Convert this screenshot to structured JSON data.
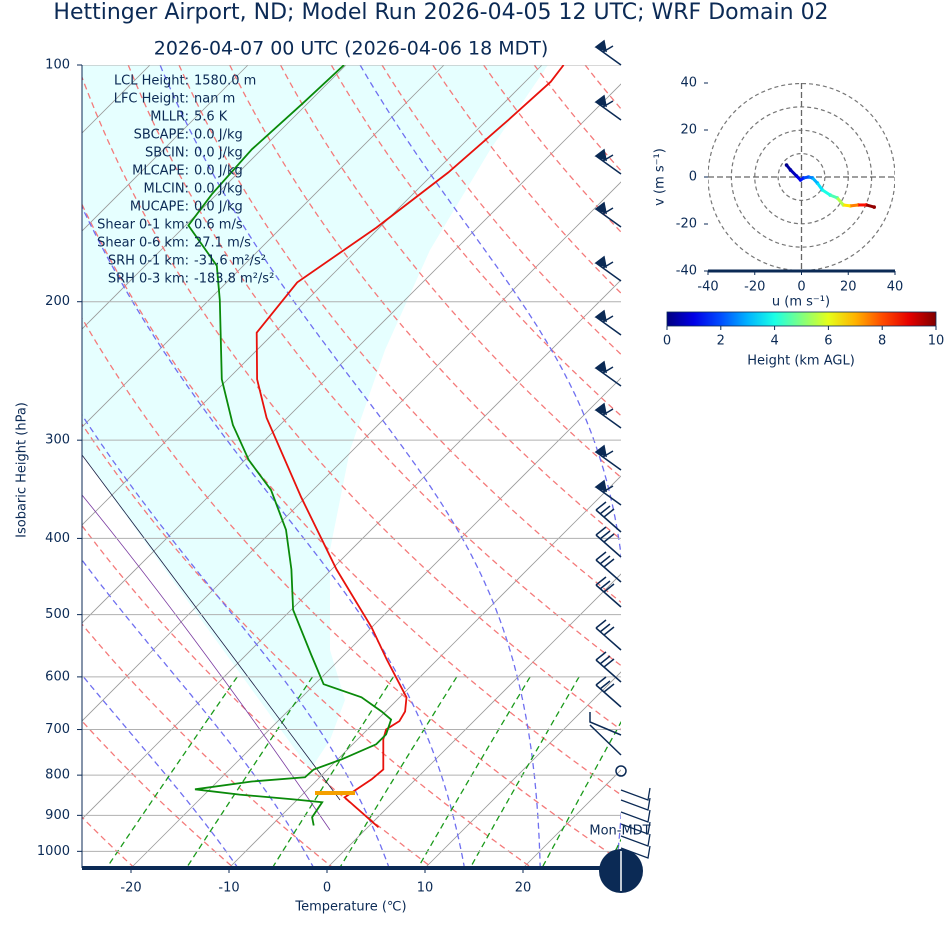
{
  "chart_data": [
    {
      "type": "skewt",
      "title": "Hettinger Airport, ND; Model Run 2026-04-05 12 UTC; WRF Domain 02",
      "subtitle": "2026-04-07 00 UTC  (2026-04-06 18 MDT)",
      "xlabel": "Temperature (℃)",
      "ylabel": "Isobaric Height (hPa)",
      "xlim": [
        -25,
        30
      ],
      "ylim": [
        1050,
        100
      ],
      "yscale": "log",
      "grid": true,
      "xticks": [
        -20,
        -10,
        0,
        10,
        20
      ],
      "yticks": [
        100,
        200,
        300,
        400,
        500,
        600,
        700,
        800,
        900,
        1000
      ],
      "series": [
        {
          "color": "#e8120c",
          "pressure": [
            932,
            854,
            834,
            810,
            787,
            720,
            700,
            683,
            664,
            637,
            570,
            519,
            438,
            355,
            281,
            251,
            219,
            189,
            161,
            137,
            117,
            105,
            100
          ],
          "values": [
            1.1,
            -5.4,
            -5.0,
            -4.5,
            -4.3,
            -7.4,
            -8.1,
            -7.6,
            -8.0,
            -9.3,
            -15.2,
            -20.0,
            -29.5,
            -40.4,
            -52.1,
            -57.0,
            -61.8,
            -62.8,
            -60.3,
            -58.6,
            -57.8,
            -57.4,
            -57.8
          ]
        },
        {
          "color": "#0a8a0a",
          "pressure": [
            927,
            905,
            866,
            859,
            847,
            834,
            815,
            805,
            787,
            764,
            731,
            710,
            680,
            664,
            637,
            613,
            562,
            493,
            438,
            390,
            347,
            318,
            287,
            251,
            199,
            180,
            160,
            146,
            128,
            112,
            100
          ],
          "values": [
            -5.7,
            -6.7,
            -7.2,
            -10.4,
            -16.4,
            -21.5,
            -16.5,
            -11.5,
            -11.4,
            -9.6,
            -7.6,
            -7.6,
            -8.6,
            -10.4,
            -13.9,
            -19.1,
            -23.4,
            -29.8,
            -34.1,
            -38.7,
            -44.3,
            -49.6,
            -54.8,
            -60.6,
            -68.9,
            -72.7,
            -79.7,
            -80.5,
            -81.0,
            -80.5,
            -80.2
          ]
        }
      ],
      "stats": [
        {
          "label": "LCL Height:",
          "value": "1580.0 m"
        },
        {
          "label": "LFC Height:",
          "value": "nan m"
        },
        {
          "label": "MLLR:",
          "value": "5.6 K"
        },
        {
          "label": "SBCAPE:",
          "value": "0.0 J/kg"
        },
        {
          "label": "SBCIN:",
          "value": "0.0 J/kg"
        },
        {
          "label": "MLCAPE:",
          "value": "0.0 J/kg"
        },
        {
          "label": "MLCIN:",
          "value": "0.0 J/kg"
        },
        {
          "label": "MUCAPE:",
          "value": "0.0 J/kg"
        },
        {
          "label": "Shear 0-1 km:",
          "value": "0.6 m/s"
        },
        {
          "label": "Shear 0-6 km:",
          "value": "27.1 m/s"
        },
        {
          "label": "SRH 0-1 km:",
          "value": "-31.6 m²/s²"
        },
        {
          "label": "SRH 0-3 km:",
          "value": "-183.8 m²/s²"
        }
      ],
      "footer_label": "Mon-MDT"
    },
    {
      "type": "hodograph",
      "xlabel": "u (m s⁻¹)",
      "ylabel": "v (m s⁻¹)",
      "xlim": [
        -40,
        40
      ],
      "ylim": [
        -40,
        40
      ],
      "xticks": [
        -40,
        -20,
        0,
        20,
        40
      ],
      "yticks": [
        -40,
        -20,
        0,
        20,
        40
      ],
      "u": [
        -6.4,
        -4.7,
        -2.1,
        -0.4,
        0.9,
        3.0,
        4.7,
        6.8,
        8.9,
        12.3,
        15.3,
        17.9,
        20.9,
        24.3,
        27.7,
        31.1
      ],
      "v": [
        5.1,
        3.0,
        0.4,
        -1.3,
        -0.4,
        0,
        -0.4,
        -2.6,
        -5.5,
        -7.7,
        -8.9,
        -11.9,
        -12.3,
        -11.9,
        -11.9,
        -12.8
      ],
      "height": [
        0,
        0.3,
        0.6,
        1.0,
        1.5,
        2.0,
        2.5,
        3.0,
        3.5,
        4.0,
        4.5,
        5.5,
        6.5,
        7.5,
        8.6,
        9.8
      ],
      "colorbar": {
        "label": "Height (km AGL)",
        "colormap": "jet",
        "lim": [
          0,
          10
        ],
        "ticks": [
          0,
          2,
          4,
          6,
          8,
          10
        ]
      }
    }
  ]
}
